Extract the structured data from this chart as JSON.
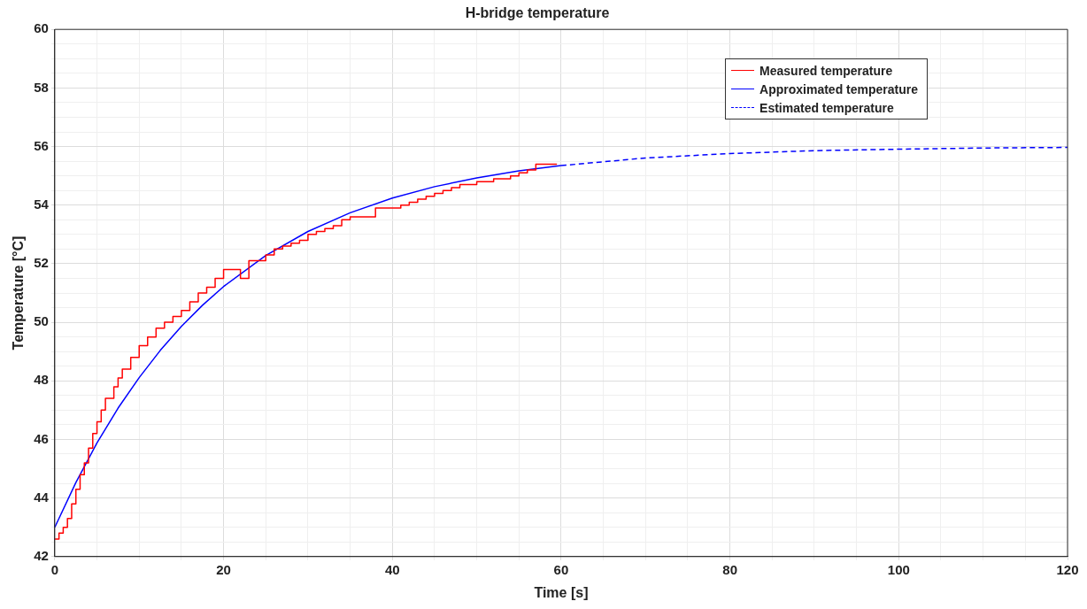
{
  "chart_data": {
    "type": "line",
    "title": "H-bridge temperature",
    "xlabel": "Time [s]",
    "ylabel": "Temperature [°C]",
    "xlim": [
      0,
      120
    ],
    "ylim": [
      42,
      60
    ],
    "xticks": [
      0,
      {
        "value": 5,
        "label": null
      },
      {
        "value": 10,
        "label": null
      },
      {
        "value": 15,
        "label": null
      },
      20,
      {
        "value": 25,
        "label": null
      },
      {
        "value": 30,
        "label": null
      },
      {
        "value": 35,
        "label": null
      },
      40,
      {
        "value": 45,
        "label": null
      },
      {
        "value": 50,
        "label": null
      },
      {
        "value": 55,
        "label": null
      },
      60,
      {
        "value": 65,
        "label": null
      },
      {
        "value": 70,
        "label": null
      },
      {
        "value": 75,
        "label": null
      },
      80,
      {
        "value": 85,
        "label": null
      },
      {
        "value": 90,
        "label": null
      },
      {
        "value": 95,
        "label": null
      },
      100,
      {
        "value": 105,
        "label": null
      },
      {
        "value": 110,
        "label": null
      },
      {
        "value": 115,
        "label": null
      },
      120
    ],
    "yticks": [
      42,
      {
        "value": 42.5,
        "label": null
      },
      {
        "value": 43,
        "label": null
      },
      {
        "value": 43.5,
        "label": null
      },
      44,
      {
        "value": 44.5,
        "label": null
      },
      {
        "value": 45,
        "label": null
      },
      {
        "value": 45.5,
        "label": null
      },
      46,
      {
        "value": 46.5,
        "label": null
      },
      {
        "value": 47,
        "label": null
      },
      {
        "value": 47.5,
        "label": null
      },
      48,
      {
        "value": 48.5,
        "label": null
      },
      {
        "value": 49,
        "label": null
      },
      {
        "value": 49.5,
        "label": null
      },
      50,
      {
        "value": 50.5,
        "label": null
      },
      {
        "value": 51,
        "label": null
      },
      {
        "value": 51.5,
        "label": null
      },
      52,
      {
        "value": 52.5,
        "label": null
      },
      {
        "value": 53,
        "label": null
      },
      {
        "value": 53.5,
        "label": null
      },
      54,
      {
        "value": 54.5,
        "label": null
      },
      {
        "value": 55,
        "label": null
      },
      {
        "value": 55.5,
        "label": null
      },
      56,
      {
        "value": 56.5,
        "label": null
      },
      {
        "value": 57,
        "label": null
      },
      {
        "value": 57.5,
        "label": null
      },
      58,
      {
        "value": 58.5,
        "label": null
      },
      {
        "value": 59,
        "label": null
      },
      {
        "value": 59.5,
        "label": null
      },
      60
    ],
    "grid": true,
    "legend": "top right",
    "marker": "none",
    "series": [
      {
        "name": "Measured temperature",
        "color": "#ff0000",
        "type": "step",
        "line_style": "solid",
        "x": [
          0,
          0.5,
          1,
          1.5,
          2,
          2.5,
          3,
          3.5,
          4,
          4.5,
          5,
          5.5,
          6,
          7,
          7.5,
          8,
          9,
          10,
          11,
          12,
          13,
          14,
          15,
          16,
          17,
          18,
          19,
          20,
          21,
          22,
          23,
          24,
          25,
          26,
          27,
          28,
          29,
          30,
          31,
          32,
          33,
          34,
          35,
          37,
          38,
          40,
          41,
          42,
          43,
          44,
          45,
          46,
          47,
          48,
          50,
          52,
          54,
          55,
          56,
          57,
          59.5
        ],
        "values": [
          42.6,
          42.8,
          43.0,
          43.3,
          43.8,
          44.3,
          44.8,
          45.2,
          45.7,
          46.2,
          46.6,
          47.0,
          47.4,
          47.8,
          48.1,
          48.4,
          48.8,
          49.2,
          49.5,
          49.8,
          50.0,
          50.2,
          50.4,
          50.7,
          51.0,
          51.2,
          51.5,
          51.8,
          51.8,
          51.5,
          52.1,
          52.1,
          52.3,
          52.5,
          52.6,
          52.7,
          52.8,
          53.0,
          53.1,
          53.2,
          53.3,
          53.5,
          53.6,
          53.6,
          53.9,
          53.9,
          54.0,
          54.1,
          54.2,
          54.3,
          54.4,
          54.5,
          54.6,
          54.7,
          54.8,
          54.9,
          55.0,
          55.1,
          55.2,
          55.4,
          55.4
        ]
      },
      {
        "name": "Approximated temperature",
        "color": "#0000ff",
        "type": "line",
        "line_style": "solid",
        "x": [
          0,
          2.5,
          5,
          7.5,
          10,
          12.5,
          15,
          17.5,
          20,
          25,
          30,
          35,
          40,
          45,
          50,
          55,
          60
        ],
        "values": [
          43.0,
          44.53,
          45.88,
          47.07,
          48.11,
          49.04,
          49.86,
          50.58,
          51.22,
          52.28,
          53.1,
          53.74,
          54.24,
          54.63,
          54.93,
          55.17,
          55.35
        ]
      },
      {
        "name": "Estimated temperature",
        "color": "#0000ff",
        "type": "line",
        "line_style": "dashed",
        "x": [
          60,
          70,
          80,
          90,
          100,
          110,
          120
        ],
        "values": [
          55.35,
          55.61,
          55.76,
          55.86,
          55.91,
          55.95,
          55.97
        ]
      }
    ]
  }
}
